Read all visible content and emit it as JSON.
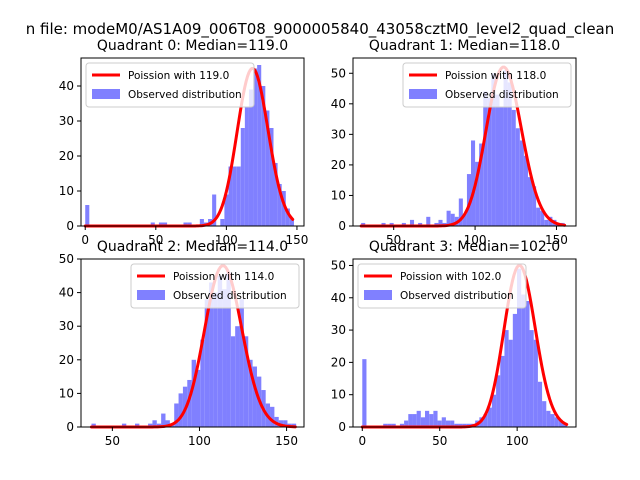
{
  "figure": {
    "suptitle": "n file: modeM0/AS1A09_006T08_9000005840_43058cztM0_level2_quad_clean"
  },
  "colors": {
    "poisson_line": "#ff0000",
    "histogram": "#8080ff",
    "axes": "#000000",
    "background": "#ffffff"
  },
  "chart_data": [
    {
      "type": "bar",
      "title": "Quadrant 0: Median=119.0",
      "xlim": [
        -3,
        155
      ],
      "ylim": [
        0,
        48
      ],
      "xticks": [
        0,
        50,
        100,
        150
      ],
      "yticks": [
        0,
        10,
        20,
        30,
        40
      ],
      "legend_placement": "upper-left",
      "series": [
        {
          "name": "Observed distribution",
          "kind": "histogram",
          "bin_width": 2.9,
          "x": [
            0,
            2.9,
            5.8,
            8.7,
            11.6,
            14.5,
            17.4,
            20.3,
            23.2,
            26.1,
            29,
            31.9,
            34.8,
            37.7,
            40.6,
            43.5,
            46.4,
            49.3,
            52.2,
            55.1,
            58,
            60.9,
            63.8,
            66.7,
            69.6,
            72.5,
            75.4,
            78.3,
            81.2,
            84.1,
            87,
            89.9,
            92.8,
            95.7,
            98.6,
            101.5,
            104.4,
            107.3,
            110.2,
            113.1,
            116,
            118.9,
            121.8,
            124.7,
            127.6,
            130.5,
            133.4,
            136.3,
            139.2,
            142.1,
            145
          ],
          "values": [
            6,
            0,
            0,
            0,
            0,
            0,
            0,
            0,
            0,
            0,
            0,
            0,
            0,
            0,
            0,
            0,
            1,
            0,
            1,
            1,
            0,
            0,
            0,
            0,
            1,
            1,
            0,
            0,
            2,
            1,
            2,
            9,
            0,
            2,
            9,
            17,
            17,
            17,
            28,
            34,
            39,
            45,
            46,
            40,
            33,
            28,
            18,
            12,
            10,
            5,
            2
          ]
        },
        {
          "name": "Poission with 119.0",
          "kind": "poisson",
          "mean": 119.0,
          "peak": 45
        }
      ]
    },
    {
      "type": "bar",
      "title": "Quadrant 1: Median=118.0",
      "xlim": [
        25,
        162
      ],
      "ylim": [
        0,
        55
      ],
      "xticks": [
        50,
        100,
        150
      ],
      "yticks": [
        0,
        10,
        20,
        30,
        40,
        50
      ],
      "legend_placement": "upper-right",
      "series": [
        {
          "name": "Observed distribution",
          "kind": "histogram",
          "bin_width": 2.5,
          "x": [
            30,
            32.5,
            35,
            37.5,
            40,
            42.5,
            45,
            47.5,
            50,
            52.5,
            55,
            57.5,
            60,
            62.5,
            65,
            67.5,
            70,
            72.5,
            75,
            77.5,
            80,
            82.5,
            85,
            87.5,
            90,
            92.5,
            95,
            97.5,
            100,
            102.5,
            105,
            107.5,
            110,
            112.5,
            115,
            117.5,
            120,
            122.5,
            125,
            127.5,
            130,
            132.5,
            135,
            137.5,
            140,
            142.5,
            145,
            147.5,
            150,
            152.5
          ],
          "values": [
            1,
            0,
            0,
            0,
            0,
            1,
            0,
            1,
            0,
            0,
            1,
            0,
            2,
            0,
            1,
            0,
            3,
            0,
            1,
            2,
            1,
            5,
            4,
            3,
            9,
            4,
            17,
            28,
            21,
            27,
            44,
            42,
            50,
            43,
            39,
            51,
            47,
            38,
            32,
            28,
            23,
            16,
            13,
            6,
            5,
            2,
            3,
            2,
            1,
            1
          ]
        },
        {
          "name": "Poission with 118.0",
          "kind": "poisson",
          "mean": 118.0,
          "peak": 52
        }
      ]
    },
    {
      "type": "bar",
      "title": "Quadrant 2: Median=114.0",
      "xlim": [
        32,
        160
      ],
      "ylim": [
        0,
        50
      ],
      "xticks": [
        50,
        100,
        150
      ],
      "yticks": [
        0,
        10,
        20,
        30,
        40,
        50
      ],
      "legend_placement": "upper-right",
      "series": [
        {
          "name": "Observed distribution",
          "kind": "histogram",
          "bin_width": 2.5,
          "x": [
            38,
            40.5,
            43,
            45.5,
            48,
            50.5,
            53,
            55.5,
            58,
            60.5,
            63,
            65.5,
            68,
            70.5,
            73,
            75.5,
            78,
            80.5,
            83,
            85.5,
            88,
            90.5,
            93,
            95.5,
            98,
            100.5,
            103,
            105.5,
            108,
            110.5,
            113,
            115.5,
            118,
            120.5,
            123,
            125.5,
            128,
            130.5,
            133,
            135.5,
            138,
            140.5,
            143,
            145.5,
            148,
            150.5,
            153
          ],
          "values": [
            1,
            0,
            0,
            0,
            0,
            0,
            0,
            1,
            0,
            0,
            1,
            0,
            0,
            1,
            2,
            1,
            4,
            2,
            1,
            7,
            10,
            12,
            14,
            20,
            17,
            26,
            38,
            43,
            40,
            45,
            41,
            46,
            27,
            30,
            38,
            27,
            20,
            18,
            15,
            11,
            7,
            6,
            3,
            2,
            2,
            1,
            1
          ]
        },
        {
          "name": "Poission with 114.0",
          "kind": "poisson",
          "mean": 114.0,
          "peak": 48
        }
      ]
    },
    {
      "type": "bar",
      "title": "Quadrant 3: Median=102.0",
      "xlim": [
        -6,
        138
      ],
      "ylim": [
        0,
        52
      ],
      "xticks": [
        0,
        50,
        100
      ],
      "yticks": [
        0,
        10,
        20,
        30,
        40,
        50
      ],
      "legend_placement": "upper-left",
      "series": [
        {
          "name": "Observed distribution",
          "kind": "histogram",
          "bin_width": 2.7,
          "x": [
            0,
            2.7,
            5.4,
            8.1,
            10.8,
            13.5,
            16.2,
            18.9,
            21.6,
            24.3,
            27,
            29.7,
            32.4,
            35.1,
            37.8,
            40.5,
            43.2,
            45.9,
            48.6,
            51.3,
            54,
            56.7,
            59.4,
            62.1,
            64.8,
            67.5,
            70.2,
            72.9,
            75.6,
            78.3,
            81,
            83.7,
            86.4,
            89.1,
            91.8,
            94.5,
            97.2,
            99.9,
            102.6,
            105.3,
            108,
            110.7,
            113.4,
            116.1,
            118.8,
            121.5,
            124.2,
            126.9,
            129.6
          ],
          "values": [
            21,
            0,
            0,
            0,
            0,
            1,
            1,
            1,
            0,
            1,
            2,
            4,
            4,
            5,
            3,
            5,
            4,
            5,
            2,
            3,
            2,
            2,
            1,
            1,
            1,
            1,
            1,
            2,
            3,
            4,
            6,
            10,
            16,
            22,
            30,
            27,
            35,
            49,
            41,
            39,
            30,
            27,
            14,
            8,
            5,
            4,
            3,
            2,
            1
          ]
        },
        {
          "name": "Poission with 102.0",
          "kind": "poisson",
          "mean": 102.0,
          "peak": 50
        }
      ]
    }
  ]
}
